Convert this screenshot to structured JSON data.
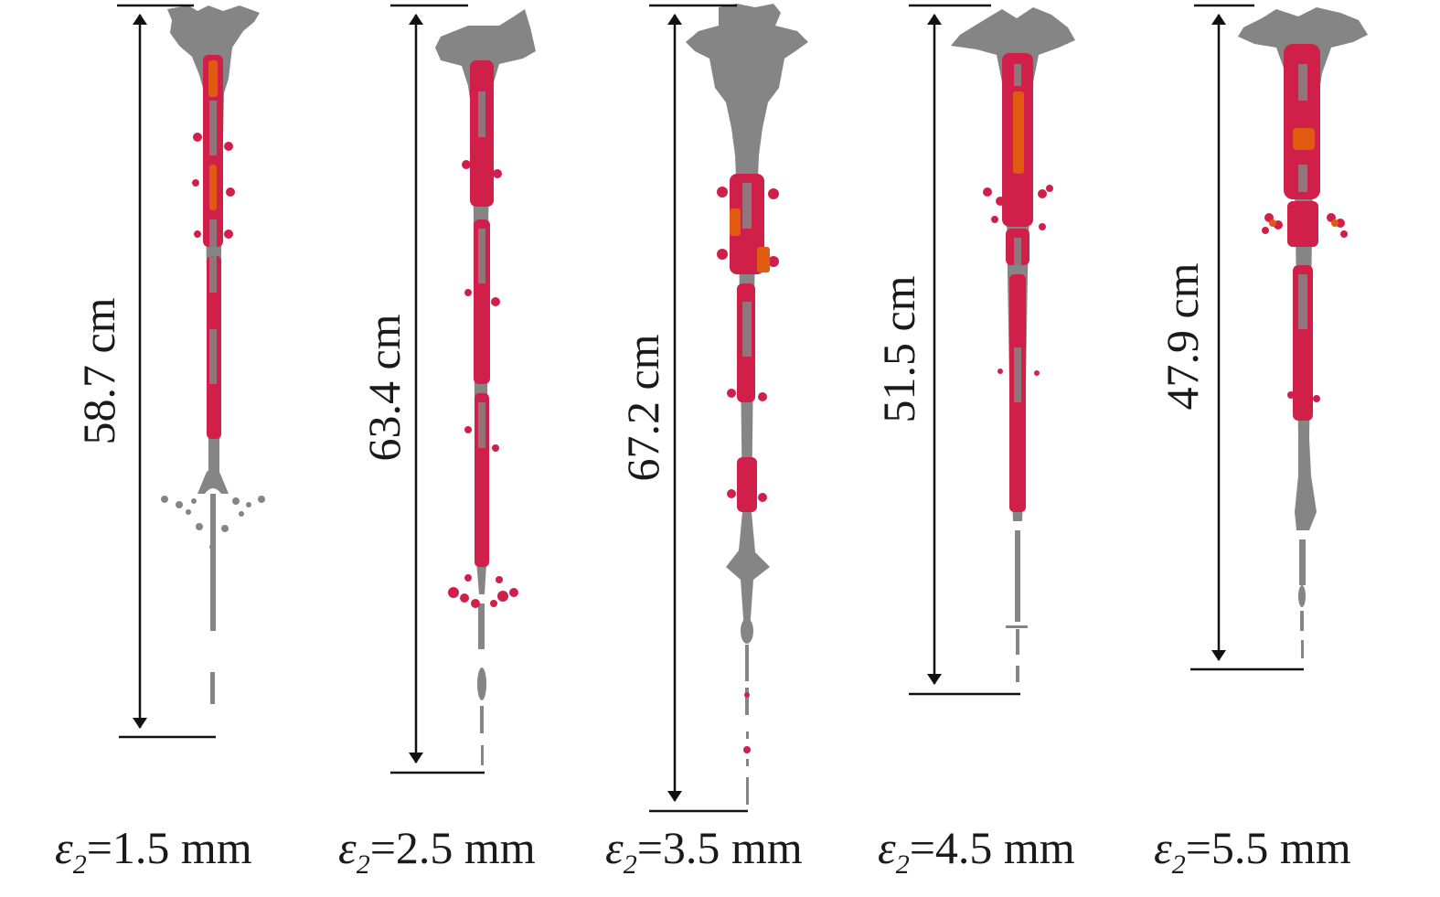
{
  "panels": [
    {
      "length_label": "58.7 cm",
      "symbol": "ε",
      "subscript": "2",
      "value": "=1.5 mm"
    },
    {
      "length_label": "63.4 cm",
      "symbol": "ε",
      "subscript": "2",
      "value": "=2.5 mm"
    },
    {
      "length_label": "67.2 cm",
      "symbol": "ε",
      "subscript": "2",
      "value": "=3.5 mm"
    },
    {
      "length_label": "51.5 cm",
      "symbol": "ε",
      "subscript": "2",
      "value": "=4.5 mm"
    },
    {
      "length_label": "47.9 cm",
      "symbol": "ε",
      "subscript": "2",
      "value": "=5.5 mm"
    }
  ],
  "colors": {
    "jet": "#858585",
    "stress": "#d0204a",
    "hot": "#e05a10",
    "line": "#111111"
  }
}
